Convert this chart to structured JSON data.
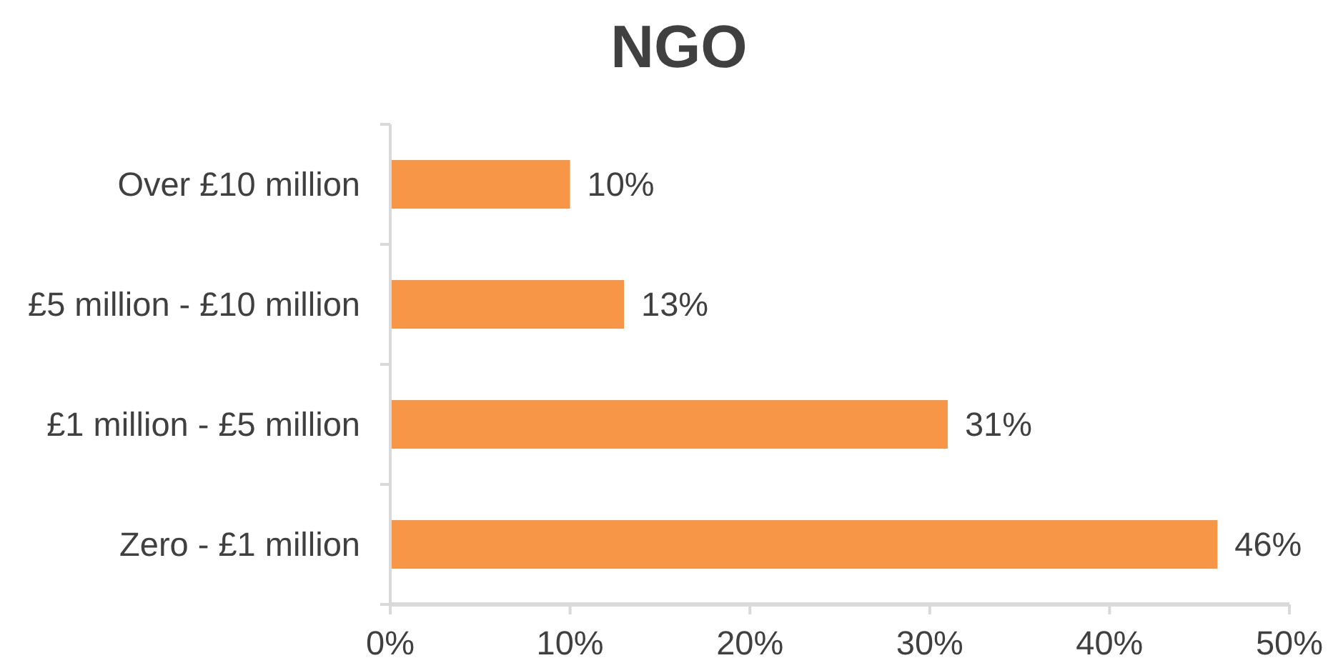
{
  "chart_data": {
    "type": "bar",
    "orientation": "horizontal",
    "title": "NGO",
    "categories": [
      "Over £10 million",
      "£5 million - £10 million",
      "£1 million - £5 million",
      "Zero - £1 million"
    ],
    "values": [
      10,
      13,
      31,
      46
    ],
    "color": "#f79646",
    "value_labels": [
      "10%",
      "13%",
      "31%",
      "46%"
    ],
    "xlim": [
      0,
      50
    ],
    "xticks": [
      {
        "value": 0,
        "label": "0%"
      },
      {
        "value": 10,
        "label": "10%"
      },
      {
        "value": 20,
        "label": "20%"
      },
      {
        "value": 30,
        "label": "30%"
      },
      {
        "value": 40,
        "label": "40%"
      },
      {
        "value": 50,
        "label": "50%"
      }
    ],
    "grid": false
  }
}
